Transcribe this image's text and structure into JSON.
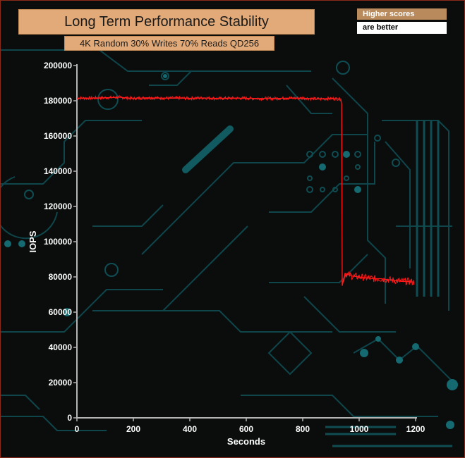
{
  "header": {
    "title": "Long Term Performance Stability",
    "subtitle": "4K Random 30% Writes 70% Reads QD256"
  },
  "note": {
    "line1": "Higher scores",
    "line2": "are better"
  },
  "colors": {
    "series": "#ff1a1a",
    "axis": "#b5b5b5",
    "title_fill": "#e2aa78",
    "circuit": "#0f4d52"
  },
  "chart_data": {
    "type": "line",
    "title": "Long Term Performance Stability",
    "subtitle": "4K Random 30% Writes 70% Reads QD256",
    "xlabel": "Seconds",
    "ylabel": "IOPS",
    "xlim": [
      0,
      1200
    ],
    "ylim": [
      0,
      200000
    ],
    "x_ticks": [
      0,
      200,
      400,
      600,
      800,
      1000,
      1200
    ],
    "y_ticks": [
      0,
      20000,
      40000,
      60000,
      80000,
      100000,
      120000,
      140000,
      160000,
      180000,
      200000
    ],
    "grid": false,
    "legend": "none",
    "series": [
      {
        "x": [
          0,
          50,
          100,
          150,
          200,
          250,
          300,
          350,
          400,
          450,
          500,
          550,
          600,
          650,
          700,
          750,
          800,
          850,
          900,
          935,
          938,
          940,
          950,
          975,
          1000,
          1025,
          1050,
          1075,
          1100,
          1125,
          1150,
          1175,
          1195
        ],
        "values": [
          181500,
          181500,
          181700,
          182000,
          181300,
          181700,
          181500,
          181500,
          181400,
          181600,
          181300,
          181500,
          181400,
          181300,
          181300,
          181500,
          181500,
          181000,
          181300,
          181000,
          178000,
          75000,
          82000,
          80500,
          80000,
          79500,
          79000,
          79000,
          78500,
          78000,
          77500,
          77500,
          77000
        ]
      }
    ]
  }
}
